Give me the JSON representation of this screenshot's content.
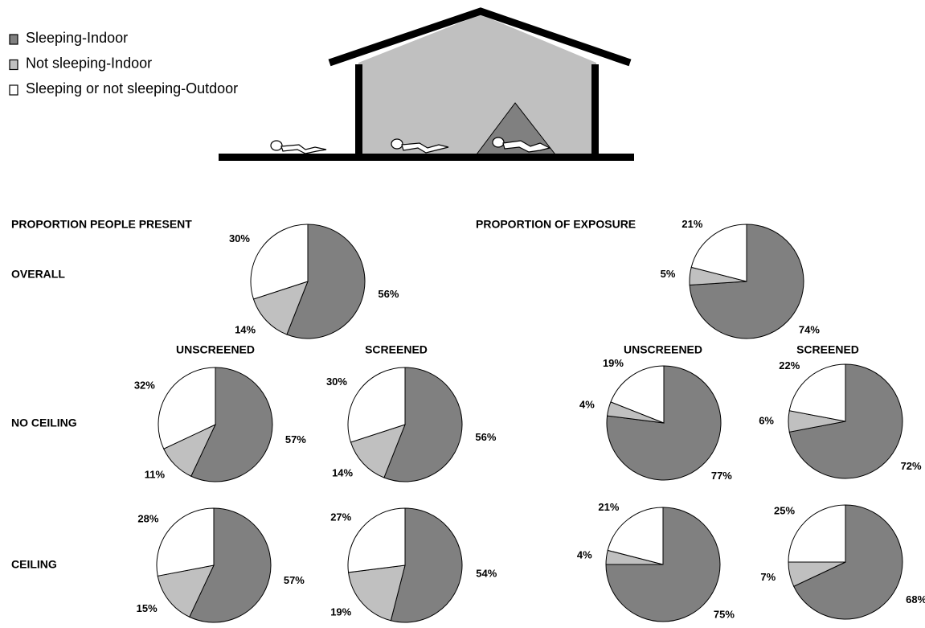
{
  "legend": [
    {
      "name": "Sleeping-Indoor",
      "color": "#808080"
    },
    {
      "name": "Not sleeping-Indoor",
      "color": "#c0c0c0"
    },
    {
      "name": "Sleeping or not sleeping-Outdoor",
      "color": "#ffffff"
    }
  ],
  "panels": [
    {
      "title": "PROPORTION PEOPLE PRESENT",
      "columns": [
        "UNSCREENED",
        "SCREENED"
      ]
    },
    {
      "title": "PROPORTION OF EXPOSURE",
      "columns": [
        "UNSCREENED",
        "SCREENED"
      ]
    }
  ],
  "row_labels": [
    "OVERALL",
    "NO CEILING",
    "CEILING"
  ],
  "chart_data": [
    {
      "type": "pie",
      "values": [
        56,
        14,
        30
      ],
      "value_labels": [
        "56%",
        "14%",
        "30%"
      ]
    },
    {
      "type": "pie",
      "values": [
        57,
        11,
        32
      ],
      "value_labels": [
        "57%",
        "11%",
        "32%"
      ]
    },
    {
      "type": "pie",
      "values": [
        56,
        14,
        30
      ],
      "value_labels": [
        "56%",
        "14%",
        "30%"
      ]
    },
    {
      "type": "pie",
      "values": [
        57,
        15,
        28
      ],
      "value_labels": [
        "57%",
        "15%",
        "28%"
      ]
    },
    {
      "type": "pie",
      "values": [
        54,
        19,
        27
      ],
      "value_labels": [
        "54%",
        "19%",
        "27%"
      ]
    },
    {
      "type": "pie",
      "values": [
        74,
        5,
        21
      ],
      "value_labels": [
        "74%",
        "5%",
        "21%"
      ]
    },
    {
      "type": "pie",
      "values": [
        77,
        4,
        19
      ],
      "value_labels": [
        "77%",
        "4%",
        "19%"
      ]
    },
    {
      "type": "pie",
      "values": [
        72,
        6,
        22
      ],
      "value_labels": [
        "72%",
        "6%",
        "22%"
      ]
    },
    {
      "type": "pie",
      "values": [
        75,
        4,
        21
      ],
      "value_labels": [
        "75%",
        "4%",
        "21%"
      ]
    },
    {
      "type": "pie",
      "values": [
        68,
        7,
        25
      ],
      "value_labels": [
        "68%",
        "7%",
        "25%"
      ]
    }
  ]
}
